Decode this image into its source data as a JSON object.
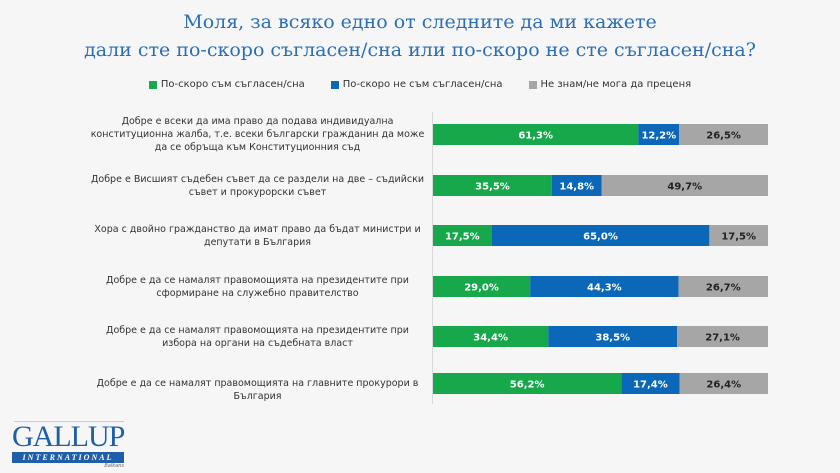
{
  "chart_data": {
    "type": "bar",
    "stacked": true,
    "orientation": "horizontal",
    "title": "Моля, за всяко едно от следните да ми кажете дали сте по-скоро съгласен/сна или по-скоро не сте съгласен/сна?",
    "title_lines": [
      "Моля, за всяко едно от следните да ми кажете",
      "дали сте по-скоро съгласен/сна или по-скоро не сте съгласен/сна?"
    ],
    "legend_placement": "top",
    "grid": false,
    "xlim": [
      0,
      100
    ],
    "categories": [
      "Добре е всеки да има право да подава индивидуална конституционна жалба, т.е. всеки български гражданин да може да се обръща към Конституционния съд",
      "Добре е Висшият съдебен съвет да се раздели на две – съдийски съвет и прокурорски съвет",
      "Хора с двойно гражданство да имат право да бъдат министри и депутати в България",
      "Добре е да се намалят правомощията на президентите при сформиране на служебно правителство",
      "Добре е да се намалят правомощията на президентите при избора на органи на съдебната власт",
      "Добре е да се намалят правомощията на главните прокурори в България"
    ],
    "series": [
      {
        "name": "По-скоро съм съгласен/сна",
        "color": "#17a84b",
        "values": [
          61.3,
          35.5,
          17.5,
          29.0,
          34.4,
          56.2
        ],
        "labels": [
          "61,3%",
          "35,5%",
          "17,5%",
          "29,0%",
          "34,4%",
          "56,2%"
        ]
      },
      {
        "name": "По-скоро не съм съгласен/сна",
        "color": "#0b68b8",
        "values": [
          12.2,
          14.8,
          65.0,
          44.3,
          38.5,
          17.4
        ],
        "labels": [
          "12,2%",
          "14,8%",
          "65,0%",
          "44,3%",
          "38,5%",
          "17,4%"
        ]
      },
      {
        "name": "Не знам/не мога да преценя",
        "color": "#a6a6a6",
        "values": [
          26.5,
          49.7,
          17.5,
          26.7,
          27.1,
          26.4
        ],
        "labels": [
          "26,5%",
          "49,7%",
          "17,5%",
          "26,7%",
          "27,1%",
          "26,4%"
        ]
      }
    ]
  },
  "logo": {
    "main": "GALLUP",
    "sub": "INTERNATIONAL",
    "region": "Balkans"
  }
}
